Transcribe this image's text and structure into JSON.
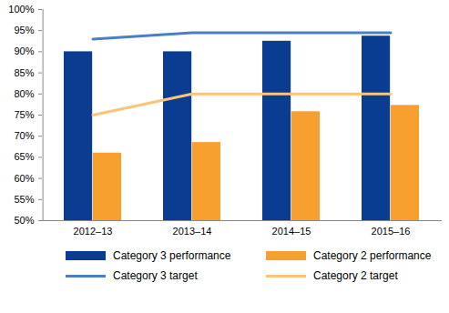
{
  "chart_data": {
    "type": "bar",
    "categories": [
      "2012–13",
      "2013–14",
      "2014–15",
      "2015–16"
    ],
    "series": [
      {
        "name": "Category 3 performance",
        "type": "bar",
        "color": "#0a3d91",
        "values": [
          90,
          90,
          92.5,
          93.7
        ]
      },
      {
        "name": "Category 2 performance",
        "type": "bar",
        "color": "#f7a02f",
        "values": [
          66,
          68.5,
          75.8,
          77.3
        ]
      },
      {
        "name": "Category 3 target",
        "type": "line",
        "color": "#4a7fc4",
        "values": [
          93,
          94.5,
          94.5,
          94.5
        ]
      },
      {
        "name": "Category 2 target",
        "type": "line",
        "color": "#fbc479",
        "values": [
          75,
          80,
          80,
          80
        ]
      }
    ],
    "ylim": [
      50,
      100
    ],
    "yticks": [
      {
        "value": 50,
        "label": "50%"
      },
      {
        "value": 55,
        "label": "55%"
      },
      {
        "value": 60,
        "label": "60%"
      },
      {
        "value": 65,
        "label": "65%"
      },
      {
        "value": 70,
        "label": "70%"
      },
      {
        "value": 75,
        "label": "75%"
      },
      {
        "value": 80,
        "label": "80%"
      },
      {
        "value": 85,
        "label": "85%"
      },
      {
        "value": 90,
        "label": "90%"
      },
      {
        "value": 95,
        "label": "95%"
      },
      {
        "value": 100,
        "label": "100%"
      }
    ],
    "grid": false,
    "legend": "bottom"
  }
}
